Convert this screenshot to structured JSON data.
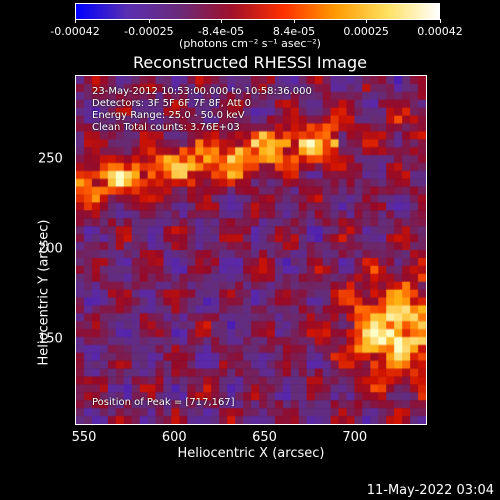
{
  "colorbar": {
    "tick_labels": [
      "-0.00042",
      "-0.00025",
      "-8.4e-05",
      "8.4e-05",
      "0.00025",
      "0.00042"
    ],
    "tick_values": [
      -0.00042,
      -0.00025,
      -8.4e-05,
      8.4e-05,
      0.00025,
      0.00042
    ],
    "range": [
      -0.00042,
      0.00042
    ],
    "units": "(photons cm⁻² s⁻¹ asec⁻²)",
    "colors": [
      "#0000ff",
      "#5a2fb0",
      "#6a2a7a",
      "#a0102a",
      "#ff3000",
      "#ff9a00",
      "#ffe060",
      "#ffffff"
    ]
  },
  "chart_data": {
    "type": "heatmap",
    "title": "Reconstructed RHESSI Image",
    "xlabel": "Heliocentric X (arcsec)",
    "ylabel": "Heliocentric Y (arcsec)",
    "xlim": [
      545,
      740
    ],
    "ylim": [
      102,
      297
    ],
    "x_ticks": [
      550,
      600,
      650,
      700
    ],
    "y_ticks": [
      150,
      200,
      250
    ],
    "annotations": {
      "time": "23-May-2012 10:53:00.000 to 10:58:36.000",
      "detectors": "Detectors: 3F 5F 6F 7F 8F, Att 0",
      "energy": "Energy Range: 25.0 - 50.0 keV",
      "clean": "Clean    Total counts: 3.76E+03",
      "peak": "Position of Peak = [717,167]"
    },
    "peak": [
      717,
      167
    ],
    "grid": false
  },
  "footer": "11-May-2022 03:04"
}
